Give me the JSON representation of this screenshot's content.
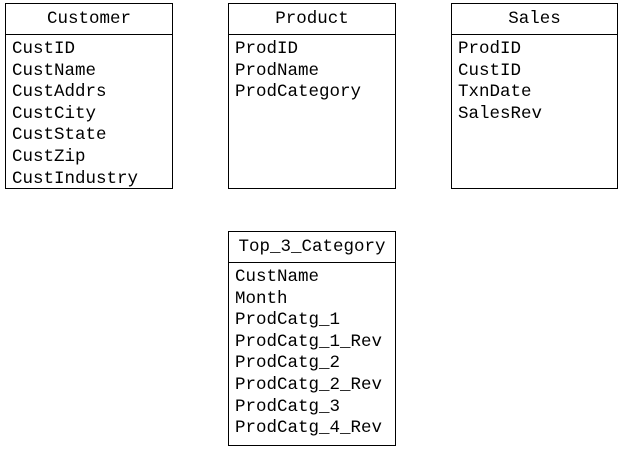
{
  "entities": [
    {
      "title": "Customer",
      "fields": [
        "CustID",
        "CustName",
        "CustAddrs",
        "CustCity",
        "CustState",
        "CustZip",
        "CustIndustry"
      ]
    },
    {
      "title": "Product",
      "fields": [
        "ProdID",
        "ProdName",
        "ProdCategory"
      ]
    },
    {
      "title": "Sales",
      "fields": [
        "ProdID",
        "CustID",
        "TxnDate",
        "SalesRev"
      ]
    },
    {
      "title": "Top_3_Category",
      "fields": [
        "CustName",
        "Month",
        "ProdCatg_1",
        "ProdCatg_1_Rev",
        "ProdCatg_2",
        "ProdCatg_2_Rev",
        "ProdCatg_3",
        "ProdCatg_4_Rev"
      ]
    }
  ]
}
